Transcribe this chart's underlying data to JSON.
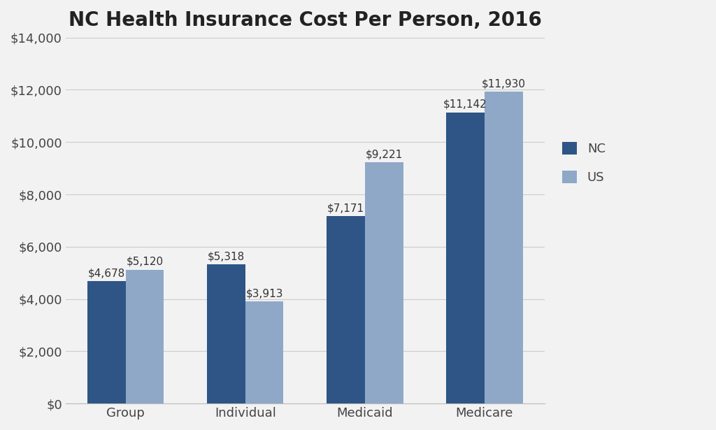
{
  "title": "NC Health Insurance Cost Per Person, 2016",
  "categories": [
    "Group",
    "Individual",
    "Medicaid",
    "Medicare"
  ],
  "nc_values": [
    4678,
    5318,
    7171,
    11142
  ],
  "us_values": [
    5120,
    3913,
    9221,
    11930
  ],
  "nc_color": "#2E5585",
  "us_color": "#8FA8C8",
  "ylim": [
    0,
    14000
  ],
  "yticks": [
    0,
    2000,
    4000,
    6000,
    8000,
    10000,
    12000,
    14000
  ],
  "bar_width": 0.32,
  "legend_labels": [
    "NC",
    "US"
  ],
  "background_color": "#F2F2F2",
  "title_fontsize": 20,
  "axis_fontsize": 13,
  "label_fontsize": 11,
  "legend_fontsize": 13
}
